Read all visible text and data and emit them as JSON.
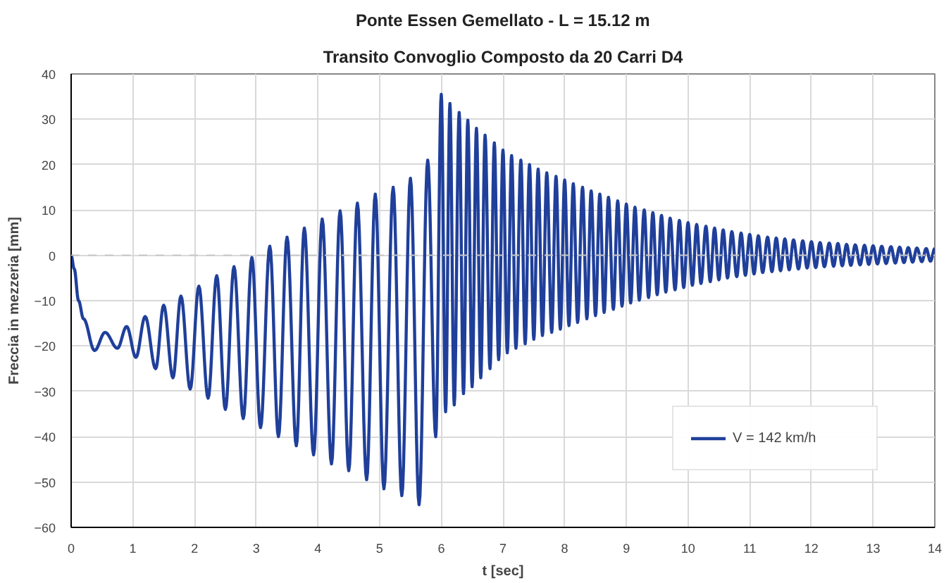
{
  "chart_data": {
    "type": "line",
    "title": "Ponte Essen Gemellato - L = 15.12 m",
    "subtitle": "Transito Convoglio Composto da 20 Carri D4",
    "xlabel": "t [sec]",
    "ylabel": "Freccia in mezzeria [mm]",
    "xlim": [
      0,
      14
    ],
    "ylim": [
      -60,
      40
    ],
    "xticks": [
      0,
      1,
      2,
      3,
      4,
      5,
      6,
      7,
      8,
      9,
      10,
      11,
      12,
      13,
      14
    ],
    "yticks": [
      -60,
      -50,
      -40,
      -30,
      -20,
      -10,
      0,
      10,
      20,
      30,
      40
    ],
    "grid": true,
    "legend": "bottom right",
    "line_style": "solid",
    "ref_lines": [
      {
        "axis": "y",
        "value": 0,
        "label": null,
        "color": "#c8c8c8",
        "line_style": "dashed"
      }
    ],
    "series": [
      {
        "name": "V = 142 km/h",
        "color": "#1f3f9a",
        "x": [
          0,
          0.05,
          0.12,
          0.2,
          0.38,
          0.55,
          0.75,
          0.9,
          1.05,
          1.2,
          1.37,
          1.5,
          1.65,
          1.78,
          1.93,
          2.07,
          2.22,
          2.36,
          2.5,
          2.64,
          2.79,
          2.93,
          3.07,
          3.22,
          3.36,
          3.5,
          3.65,
          3.78,
          3.93,
          4.07,
          4.22,
          4.36,
          4.5,
          4.64,
          4.79,
          4.93,
          5.07,
          5.22,
          5.36,
          5.5,
          5.64,
          5.78,
          5.91,
          6.0,
          6.07,
          6.14,
          6.21,
          6.29,
          6.36,
          6.43,
          6.5,
          6.57,
          6.64,
          6.71,
          6.79,
          6.86,
          6.93,
          7.0,
          7.07,
          7.14,
          7.21,
          7.29,
          7.36,
          7.43,
          7.5,
          7.57,
          7.64,
          7.71,
          7.79,
          7.86,
          7.93,
          8.0,
          8.07,
          8.14,
          8.21,
          8.29,
          8.36,
          8.43,
          8.5,
          8.57,
          8.64,
          8.71,
          8.79,
          8.86,
          8.93,
          9.0,
          9.07,
          9.14,
          9.21,
          9.29,
          9.36,
          9.43,
          9.5,
          9.57,
          9.64,
          9.71,
          9.79,
          9.86,
          9.93,
          10.0,
          10.07,
          10.14,
          10.21,
          10.29,
          10.36,
          10.43,
          10.5,
          10.57,
          10.64,
          10.71,
          10.79,
          10.86,
          10.93,
          11.0,
          11.07,
          11.14,
          11.21,
          11.29,
          11.36,
          11.43,
          11.5,
          11.57,
          11.64,
          11.71,
          11.79,
          11.86,
          11.93,
          12.0,
          12.07,
          12.14,
          12.21,
          12.29,
          12.36,
          12.43,
          12.5,
          12.57,
          12.64,
          12.71,
          12.79,
          12.86,
          12.93,
          13.0,
          13.07,
          13.14,
          13.21,
          13.29,
          13.36,
          13.43,
          13.5,
          13.57,
          13.64,
          13.71,
          13.79,
          13.86,
          13.93,
          14.0
        ],
        "values": [
          0,
          -3,
          -10,
          -14,
          -21,
          -17,
          -20.5,
          -15.7,
          -22.5,
          -13.5,
          -25,
          -11,
          -27,
          -9,
          -29.5,
          -6.8,
          -31.5,
          -4.5,
          -34,
          -2.5,
          -36,
          -0.5,
          -38,
          2,
          -40,
          4,
          -42,
          6,
          -44,
          8,
          -46,
          9.8,
          -47.5,
          11.5,
          -49.5,
          13.5,
          -51.5,
          15,
          -53,
          17,
          -55,
          21,
          -40,
          35.5,
          -34.5,
          33.5,
          -33,
          31.5,
          -30.5,
          29.8,
          -29,
          28,
          -27,
          26.5,
          -25,
          24.8,
          -23,
          23.2,
          -21.5,
          22,
          -20.5,
          21,
          -19.5,
          20,
          -18.5,
          19,
          -17.7,
          18.2,
          -17,
          17.4,
          -16.3,
          16.6,
          -15.5,
          15.8,
          -14.8,
          15,
          -14,
          14.2,
          -13.3,
          13.5,
          -12.6,
          12.8,
          -11.9,
          12,
          -11.2,
          11.3,
          -10.5,
          10.6,
          -9.9,
          10,
          -9.3,
          9.4,
          -8.7,
          8.8,
          -8.1,
          8.2,
          -7.6,
          7.7,
          -7.1,
          7.2,
          -6.6,
          6.8,
          -6.2,
          6.4,
          -5.8,
          6,
          -5.4,
          5.6,
          -5,
          5.2,
          -4.7,
          4.9,
          -4.4,
          4.6,
          -4.1,
          4.3,
          -3.8,
          4,
          -3.6,
          3.8,
          -3.4,
          3.6,
          -3.2,
          3.4,
          -3,
          3.2,
          -2.8,
          3,
          -2.7,
          2.8,
          -2.5,
          2.7,
          -2.4,
          2.6,
          -2.3,
          2.4,
          -2.2,
          2.3,
          -2.1,
          2.2,
          -2,
          2.1,
          -1.9,
          2,
          -1.8,
          1.9,
          -1.7,
          1.8,
          -1.6,
          1.7,
          -1.5,
          1.6,
          -1.4,
          1.5,
          -1.3,
          1.5
        ]
      }
    ]
  }
}
